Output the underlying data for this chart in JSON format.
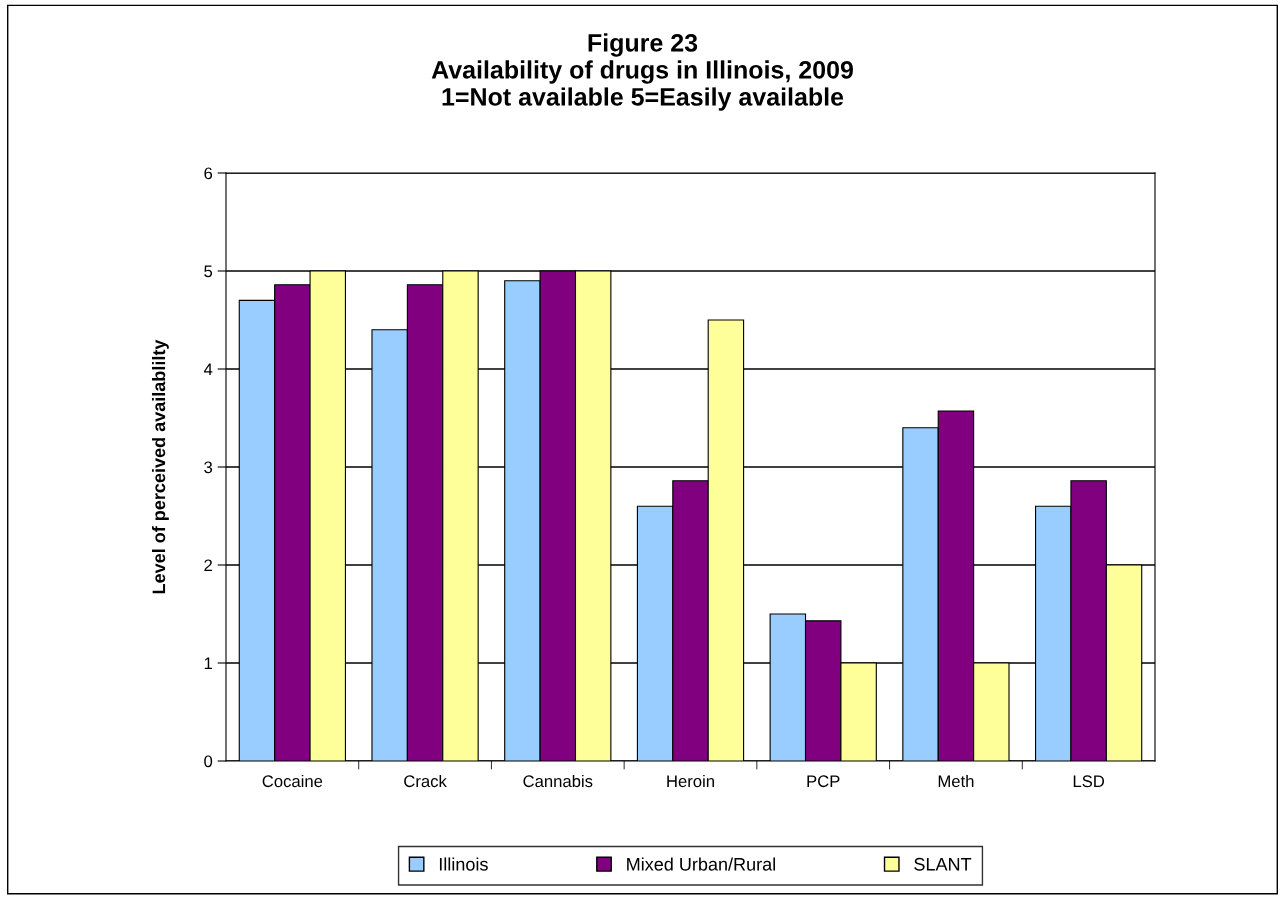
{
  "chart_data": {
    "type": "bar",
    "title": "Figure 23\nAvailability of drugs in Illinois, 2009\n1=Not available 5=Easily available",
    "ylabel": "Level of perceived availablilty",
    "categories": [
      "Cocaine",
      "Crack",
      "Cannabis",
      "Heroin",
      "PCP",
      "Meth",
      "LSD"
    ],
    "series": [
      {
        "name": "Illinois",
        "color": "#99ccff",
        "values": [
          4.7,
          4.4,
          4.9,
          2.6,
          1.5,
          3.4,
          2.6
        ]
      },
      {
        "name": "Mixed Urban/Rural",
        "color": "#800080",
        "values": [
          4.86,
          4.86,
          5,
          2.86,
          1.43,
          3.57,
          2.86
        ]
      },
      {
        "name": "SLANT",
        "color": "#ffff99",
        "values": [
          5,
          5,
          5,
          4.5,
          1,
          1,
          2
        ]
      }
    ],
    "ylim": [
      0,
      6
    ],
    "yticks": [
      0,
      1,
      2,
      3,
      4,
      5,
      6
    ],
    "grid": "y",
    "legend": "bottom"
  }
}
